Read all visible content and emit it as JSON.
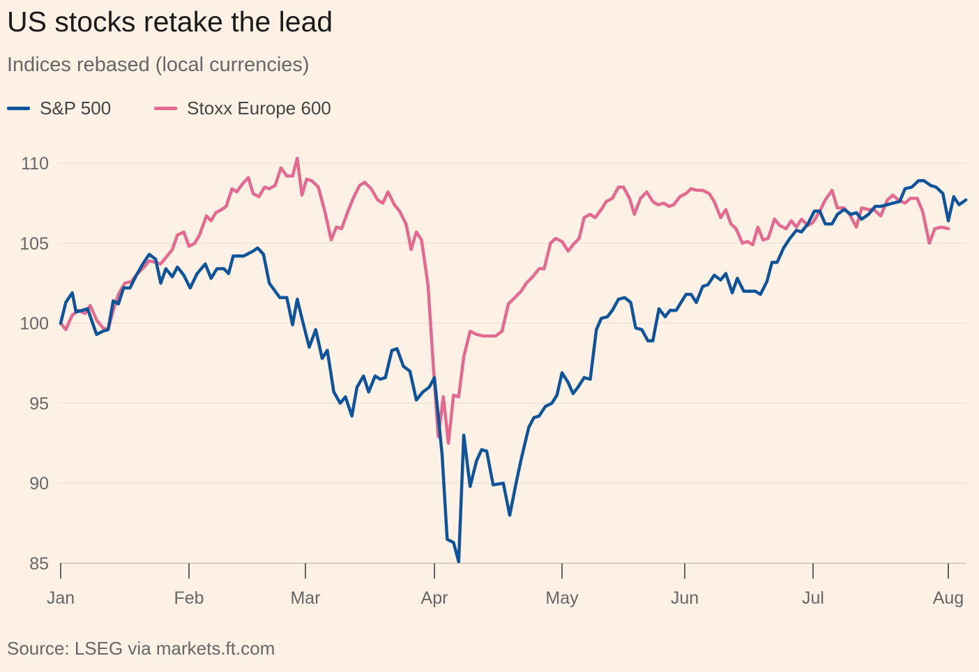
{
  "title": "US stocks retake the lead",
  "subtitle": "Indices rebased (local currencies)",
  "source": "Source: LSEG via markets.ft.com",
  "colors": {
    "background": "#fdf1e6",
    "sp500": "#0f5499",
    "stoxx": "#e3698f",
    "grid": "#efe3d8",
    "axis": "#333333"
  },
  "chart_data": {
    "type": "line",
    "title": "US stocks retake the lead",
    "subtitle": "Indices rebased (local currencies)",
    "xlabel": "",
    "ylabel": "",
    "ylim": [
      85,
      110
    ],
    "yticks": [
      110,
      105,
      100,
      95,
      90,
      85
    ],
    "ytick_labels": [
      "110",
      "105",
      "100",
      "95",
      "90",
      "85"
    ],
    "xticks": [
      "Jan",
      "Feb",
      "Mar",
      "Apr",
      "May",
      "Jun",
      "Jul",
      "Aug"
    ],
    "xlim_months": [
      0,
      7.1
    ],
    "grid": true,
    "legend": "top-left",
    "series": [
      {
        "name": "S&P 500",
        "color": "#0f5499",
        "points": [
          [
            0.0,
            100.0
          ],
          [
            0.04,
            101.3
          ],
          [
            0.09,
            101.9
          ],
          [
            0.12,
            100.7
          ],
          [
            0.17,
            100.8
          ],
          [
            0.21,
            100.9
          ],
          [
            0.28,
            99.3
          ],
          [
            0.33,
            99.5
          ],
          [
            0.37,
            99.6
          ],
          [
            0.41,
            101.4
          ],
          [
            0.45,
            101.2
          ],
          [
            0.49,
            102.2
          ],
          [
            0.54,
            102.2
          ],
          [
            0.59,
            103.0
          ],
          [
            0.64,
            103.7
          ],
          [
            0.69,
            104.3
          ],
          [
            0.74,
            104.0
          ],
          [
            0.78,
            102.5
          ],
          [
            0.82,
            103.4
          ],
          [
            0.87,
            102.9
          ],
          [
            0.91,
            103.5
          ],
          [
            0.96,
            103.0
          ],
          [
            1.01,
            102.2
          ],
          [
            1.07,
            103.1
          ],
          [
            1.14,
            103.7
          ],
          [
            1.19,
            102.8
          ],
          [
            1.24,
            103.4
          ],
          [
            1.3,
            103.4
          ],
          [
            1.34,
            103.1
          ],
          [
            1.38,
            104.2
          ],
          [
            1.47,
            104.2
          ],
          [
            1.55,
            104.5
          ],
          [
            1.59,
            104.7
          ],
          [
            1.64,
            104.3
          ],
          [
            1.69,
            102.5
          ],
          [
            1.78,
            101.6
          ],
          [
            1.84,
            101.6
          ],
          [
            1.89,
            99.9
          ],
          [
            1.93,
            101.5
          ],
          [
            1.98,
            100.0
          ],
          [
            2.03,
            98.5
          ],
          [
            2.08,
            99.6
          ],
          [
            2.13,
            97.8
          ],
          [
            2.17,
            98.3
          ],
          [
            2.22,
            95.7
          ],
          [
            2.27,
            95.0
          ],
          [
            2.31,
            95.4
          ],
          [
            2.36,
            94.2
          ],
          [
            2.4,
            96.0
          ],
          [
            2.45,
            96.7
          ],
          [
            2.49,
            95.7
          ],
          [
            2.54,
            96.7
          ],
          [
            2.58,
            96.5
          ],
          [
            2.62,
            96.6
          ],
          [
            2.67,
            98.3
          ],
          [
            2.71,
            98.4
          ],
          [
            2.76,
            97.3
          ],
          [
            2.81,
            97.0
          ],
          [
            2.86,
            95.2
          ],
          [
            2.91,
            95.7
          ],
          [
            2.96,
            96.0
          ],
          [
            3.0,
            96.6
          ],
          [
            3.06,
            91.8
          ],
          [
            3.1,
            86.5
          ],
          [
            3.15,
            86.3
          ],
          [
            3.19,
            85.1
          ],
          [
            3.23,
            93.0
          ],
          [
            3.28,
            89.8
          ],
          [
            3.33,
            91.4
          ],
          [
            3.37,
            92.1
          ],
          [
            3.41,
            92.0
          ],
          [
            3.46,
            89.9
          ],
          [
            3.54,
            90.0
          ],
          [
            3.59,
            88.0
          ],
          [
            3.64,
            90.0
          ],
          [
            3.68,
            91.5
          ],
          [
            3.74,
            93.5
          ],
          [
            3.78,
            94.1
          ],
          [
            3.82,
            94.2
          ],
          [
            3.87,
            94.8
          ],
          [
            3.92,
            95.0
          ],
          [
            3.96,
            95.5
          ],
          [
            4.0,
            96.9
          ],
          [
            4.05,
            96.3
          ],
          [
            4.09,
            95.6
          ],
          [
            4.13,
            96.0
          ],
          [
            4.18,
            96.6
          ],
          [
            4.23,
            96.5
          ],
          [
            4.28,
            99.6
          ],
          [
            4.32,
            100.3
          ],
          [
            4.37,
            100.4
          ],
          [
            4.41,
            100.8
          ],
          [
            4.46,
            101.5
          ],
          [
            4.51,
            101.6
          ],
          [
            4.56,
            101.3
          ],
          [
            4.6,
            99.7
          ],
          [
            4.65,
            99.6
          ],
          [
            4.7,
            98.9
          ],
          [
            4.74,
            98.9
          ],
          [
            4.79,
            100.9
          ],
          [
            4.84,
            100.4
          ],
          [
            4.88,
            100.8
          ],
          [
            4.93,
            100.8
          ],
          [
            4.97,
            101.3
          ],
          [
            5.01,
            101.8
          ],
          [
            5.05,
            101.8
          ],
          [
            5.09,
            101.3
          ],
          [
            5.14,
            102.3
          ],
          [
            5.18,
            102.4
          ],
          [
            5.23,
            103.0
          ],
          [
            5.28,
            102.7
          ],
          [
            5.32,
            103.1
          ],
          [
            5.37,
            101.9
          ],
          [
            5.41,
            102.8
          ],
          [
            5.46,
            102.0
          ],
          [
            5.51,
            102.0
          ],
          [
            5.55,
            102.0
          ],
          [
            5.59,
            101.8
          ],
          [
            5.64,
            102.6
          ],
          [
            5.68,
            103.8
          ],
          [
            5.72,
            103.8
          ],
          [
            5.77,
            104.7
          ],
          [
            5.82,
            105.3
          ],
          [
            5.87,
            105.8
          ],
          [
            5.91,
            105.7
          ],
          [
            5.96,
            106.2
          ],
          [
            6.01,
            107.0
          ],
          [
            6.05,
            107.0
          ],
          [
            6.09,
            106.2
          ],
          [
            6.14,
            106.2
          ],
          [
            6.18,
            106.8
          ],
          [
            6.23,
            107.1
          ],
          [
            6.28,
            106.8
          ],
          [
            6.32,
            106.9
          ],
          [
            6.36,
            106.5
          ],
          [
            6.41,
            106.8
          ],
          [
            6.46,
            107.3
          ],
          [
            6.5,
            107.3
          ],
          [
            6.55,
            107.4
          ],
          [
            6.59,
            107.5
          ],
          [
            6.64,
            107.6
          ],
          [
            6.68,
            108.4
          ],
          [
            6.73,
            108.5
          ],
          [
            6.78,
            108.9
          ],
          [
            6.82,
            108.9
          ],
          [
            6.87,
            108.6
          ],
          [
            6.91,
            108.5
          ],
          [
            6.96,
            108.1
          ],
          [
            7.0,
            106.4
          ],
          [
            7.04,
            107.9
          ],
          [
            7.08,
            107.4
          ],
          [
            7.13,
            107.7
          ]
        ]
      },
      {
        "name": "Stoxx Europe 600",
        "color": "#e3698f",
        "points": [
          [
            0.0,
            100.0
          ],
          [
            0.04,
            99.6
          ],
          [
            0.09,
            100.5
          ],
          [
            0.14,
            100.8
          ],
          [
            0.19,
            100.6
          ],
          [
            0.23,
            101.1
          ],
          [
            0.28,
            100.2
          ],
          [
            0.33,
            99.7
          ],
          [
            0.37,
            99.6
          ],
          [
            0.41,
            100.8
          ],
          [
            0.45,
            101.8
          ],
          [
            0.5,
            102.5
          ],
          [
            0.55,
            102.6
          ],
          [
            0.6,
            103.1
          ],
          [
            0.65,
            103.5
          ],
          [
            0.69,
            103.9
          ],
          [
            0.74,
            103.8
          ],
          [
            0.78,
            103.7
          ],
          [
            0.83,
            104.2
          ],
          [
            0.87,
            104.6
          ],
          [
            0.91,
            105.5
          ],
          [
            0.96,
            105.7
          ],
          [
            1.0,
            104.8
          ],
          [
            1.05,
            105.0
          ],
          [
            1.09,
            105.5
          ],
          [
            1.15,
            106.7
          ],
          [
            1.19,
            106.4
          ],
          [
            1.23,
            106.9
          ],
          [
            1.28,
            107.1
          ],
          [
            1.32,
            107.3
          ],
          [
            1.37,
            108.4
          ],
          [
            1.41,
            108.2
          ],
          [
            1.46,
            108.7
          ],
          [
            1.51,
            109.1
          ],
          [
            1.55,
            108.1
          ],
          [
            1.6,
            107.9
          ],
          [
            1.65,
            108.5
          ],
          [
            1.69,
            108.4
          ],
          [
            1.74,
            108.6
          ],
          [
            1.79,
            109.7
          ],
          [
            1.84,
            109.2
          ],
          [
            1.89,
            109.2
          ],
          [
            1.93,
            110.3
          ],
          [
            1.97,
            108.0
          ],
          [
            2.01,
            109.0
          ],
          [
            2.05,
            108.9
          ],
          [
            2.1,
            108.5
          ],
          [
            2.15,
            107.0
          ],
          [
            2.2,
            105.2
          ],
          [
            2.24,
            106.0
          ],
          [
            2.28,
            105.9
          ],
          [
            2.33,
            107.0
          ],
          [
            2.37,
            107.8
          ],
          [
            2.42,
            108.6
          ],
          [
            2.46,
            108.8
          ],
          [
            2.51,
            108.4
          ],
          [
            2.56,
            107.7
          ],
          [
            2.6,
            107.5
          ],
          [
            2.64,
            108.2
          ],
          [
            2.69,
            107.4
          ],
          [
            2.73,
            107.0
          ],
          [
            2.78,
            106.2
          ],
          [
            2.82,
            104.6
          ],
          [
            2.86,
            105.7
          ],
          [
            2.9,
            105.2
          ],
          [
            2.95,
            102.4
          ],
          [
            2.99,
            97.5
          ],
          [
            3.03,
            92.9
          ],
          [
            3.07,
            95.4
          ],
          [
            3.11,
            92.5
          ],
          [
            3.15,
            95.5
          ],
          [
            3.19,
            95.4
          ],
          [
            3.23,
            97.9
          ],
          [
            3.28,
            99.5
          ],
          [
            3.33,
            99.3
          ],
          [
            3.38,
            99.2
          ],
          [
            3.43,
            99.2
          ],
          [
            3.48,
            99.2
          ],
          [
            3.53,
            99.5
          ],
          [
            3.58,
            101.2
          ],
          [
            3.63,
            101.6
          ],
          [
            3.68,
            102.0
          ],
          [
            3.72,
            102.5
          ],
          [
            3.77,
            102.9
          ],
          [
            3.82,
            103.4
          ],
          [
            3.86,
            103.4
          ],
          [
            3.91,
            105.0
          ],
          [
            3.95,
            105.3
          ],
          [
            4.0,
            105.1
          ],
          [
            4.05,
            104.5
          ],
          [
            4.09,
            104.9
          ],
          [
            4.14,
            105.3
          ],
          [
            4.18,
            106.6
          ],
          [
            4.23,
            106.8
          ],
          [
            4.27,
            106.6
          ],
          [
            4.32,
            107.1
          ],
          [
            4.36,
            107.6
          ],
          [
            4.41,
            107.8
          ],
          [
            4.46,
            108.5
          ],
          [
            4.5,
            108.5
          ],
          [
            4.55,
            107.8
          ],
          [
            4.59,
            106.8
          ],
          [
            4.64,
            107.8
          ],
          [
            4.69,
            108.2
          ],
          [
            4.74,
            107.6
          ],
          [
            4.78,
            107.4
          ],
          [
            4.83,
            107.5
          ],
          [
            4.87,
            107.3
          ],
          [
            4.91,
            107.4
          ],
          [
            4.96,
            107.9
          ],
          [
            5.01,
            108.1
          ],
          [
            5.05,
            108.4
          ],
          [
            5.09,
            108.3
          ],
          [
            5.14,
            108.3
          ],
          [
            5.19,
            108.1
          ],
          [
            5.23,
            107.6
          ],
          [
            5.28,
            106.6
          ],
          [
            5.32,
            107.1
          ],
          [
            5.36,
            106.2
          ],
          [
            5.4,
            105.9
          ],
          [
            5.45,
            105.0
          ],
          [
            5.49,
            105.1
          ],
          [
            5.53,
            104.9
          ],
          [
            5.57,
            106.0
          ],
          [
            5.61,
            105.2
          ],
          [
            5.65,
            105.3
          ],
          [
            5.7,
            106.5
          ],
          [
            5.74,
            106.1
          ],
          [
            5.79,
            105.9
          ],
          [
            5.83,
            106.4
          ],
          [
            5.87,
            106.0
          ],
          [
            5.91,
            106.5
          ],
          [
            5.96,
            106.1
          ],
          [
            6.0,
            106.3
          ],
          [
            6.05,
            107.0
          ],
          [
            6.09,
            107.7
          ],
          [
            6.14,
            108.3
          ],
          [
            6.18,
            107.2
          ],
          [
            6.23,
            107.2
          ],
          [
            6.27,
            106.8
          ],
          [
            6.32,
            106.0
          ],
          [
            6.36,
            107.2
          ],
          [
            6.41,
            107.1
          ],
          [
            6.45,
            107.1
          ],
          [
            6.5,
            106.7
          ],
          [
            6.55,
            107.7
          ],
          [
            6.59,
            108.0
          ],
          [
            6.63,
            107.7
          ],
          [
            6.68,
            107.5
          ],
          [
            6.72,
            107.8
          ],
          [
            6.77,
            107.8
          ],
          [
            6.81,
            107.0
          ],
          [
            6.86,
            105.0
          ],
          [
            6.9,
            105.9
          ],
          [
            6.95,
            106.0
          ],
          [
            7.0,
            105.9
          ]
        ]
      }
    ]
  }
}
